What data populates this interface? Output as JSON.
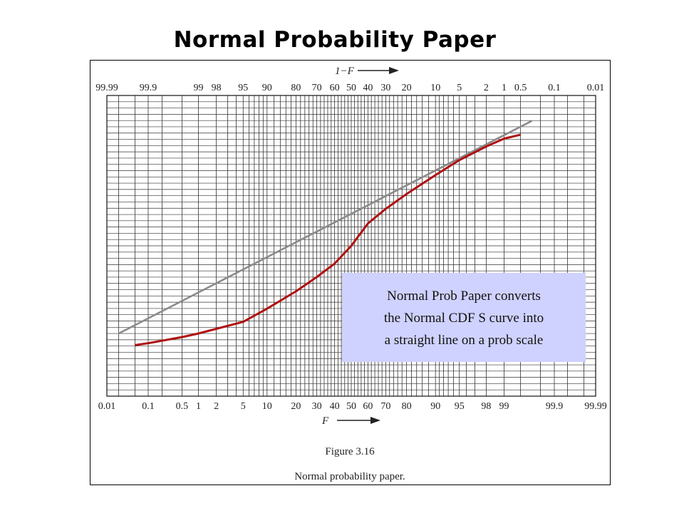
{
  "slide": {
    "title": "Normal Probability Paper"
  },
  "note": {
    "lines": [
      "Normal Prob Paper converts",
      "the Normal CDF S curve into",
      "a straight line on a prob scale"
    ]
  },
  "figure": {
    "number": "Figure 3.16",
    "caption": "Normal probability paper."
  },
  "colors": {
    "curve": "#b01010",
    "line": "#8a8a8a",
    "grid": "#333333",
    "note_bg": "#cfd2ff"
  },
  "chart_data": {
    "type": "line",
    "scale": "normal-probability",
    "grid": true,
    "top_axis": {
      "label": "1−F",
      "ticks": [
        "99.99",
        "99.9",
        "99",
        "98",
        "95",
        "90",
        "80",
        "70",
        "60",
        "50",
        "40",
        "30",
        "20",
        "10",
        "5",
        "2",
        "1",
        "0.5",
        "0.1",
        "0.01"
      ]
    },
    "bottom_axis": {
      "label": "F",
      "ticks": [
        "0.01",
        "0.1",
        "0.5",
        "1",
        "2",
        "5",
        "10",
        "20",
        "30",
        "40",
        "50",
        "60",
        "70",
        "80",
        "90",
        "95",
        "98",
        "99",
        "99.9",
        "99.99"
      ]
    },
    "series": [
      {
        "style": "S-curve",
        "x": [
          0.05,
          0.1,
          0.5,
          1,
          2,
          5,
          10,
          20,
          30,
          40,
          50,
          60,
          70,
          80,
          90,
          95,
          98,
          99,
          99.5
        ],
        "y": [
          0.7,
          0.8,
          1.2,
          1.5,
          2,
          3,
          6,
          13,
          22,
          33,
          50,
          71,
          82,
          90,
          96,
          98.3,
          99.3,
          99.6,
          99.7
        ]
      },
      {
        "style": "straight",
        "x": [
          0.02,
          99.7
        ],
        "y": [
          1.5,
          99.9
        ]
      }
    ]
  }
}
